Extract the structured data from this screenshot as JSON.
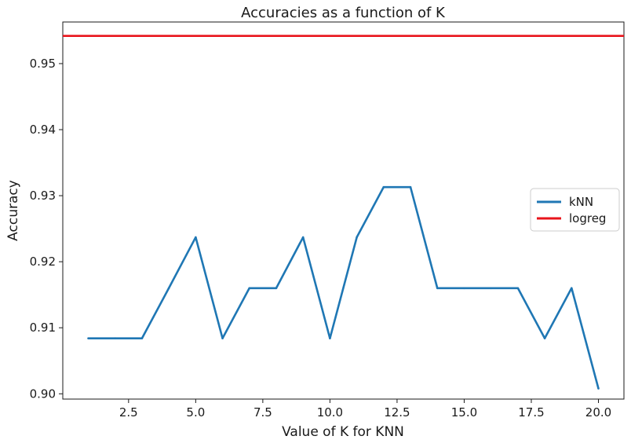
{
  "chart_data": {
    "type": "line",
    "title": "Accuracies as a function of K",
    "xlabel": "Value of K for KNN",
    "ylabel": "Accuracy",
    "xlim": [
      0.05,
      20.95
    ],
    "ylim": [
      0.8992,
      0.9563
    ],
    "xticks": [
      2.5,
      5.0,
      7.5,
      10.0,
      12.5,
      15.0,
      17.5,
      20.0
    ],
    "xtick_labels": [
      "2.5",
      "5.0",
      "7.5",
      "10.0",
      "12.5",
      "15.0",
      "17.5",
      "20.0"
    ],
    "yticks": [
      0.9,
      0.91,
      0.92,
      0.93,
      0.94,
      0.95
    ],
    "ytick_labels": [
      "0.90",
      "0.91",
      "0.92",
      "0.93",
      "0.94",
      "0.95"
    ],
    "grid": false,
    "legend": "center-right",
    "series": [
      {
        "name": "kNN",
        "color": "#1f77b4",
        "x": [
          1,
          2,
          3,
          4,
          5,
          6,
          7,
          8,
          9,
          10,
          11,
          12,
          13,
          14,
          15,
          16,
          17,
          18,
          19,
          20
        ],
        "y": [
          0.9084,
          0.9084,
          0.9084,
          0.916,
          0.9237,
          0.9084,
          0.916,
          0.916,
          0.9237,
          0.9084,
          0.9237,
          0.9313,
          0.9313,
          0.916,
          0.916,
          0.916,
          0.916,
          0.9084,
          0.916,
          0.9008
        ]
      },
      {
        "name": "logreg",
        "color": "#e8141b",
        "type": "hline",
        "y": 0.9542
      }
    ]
  }
}
